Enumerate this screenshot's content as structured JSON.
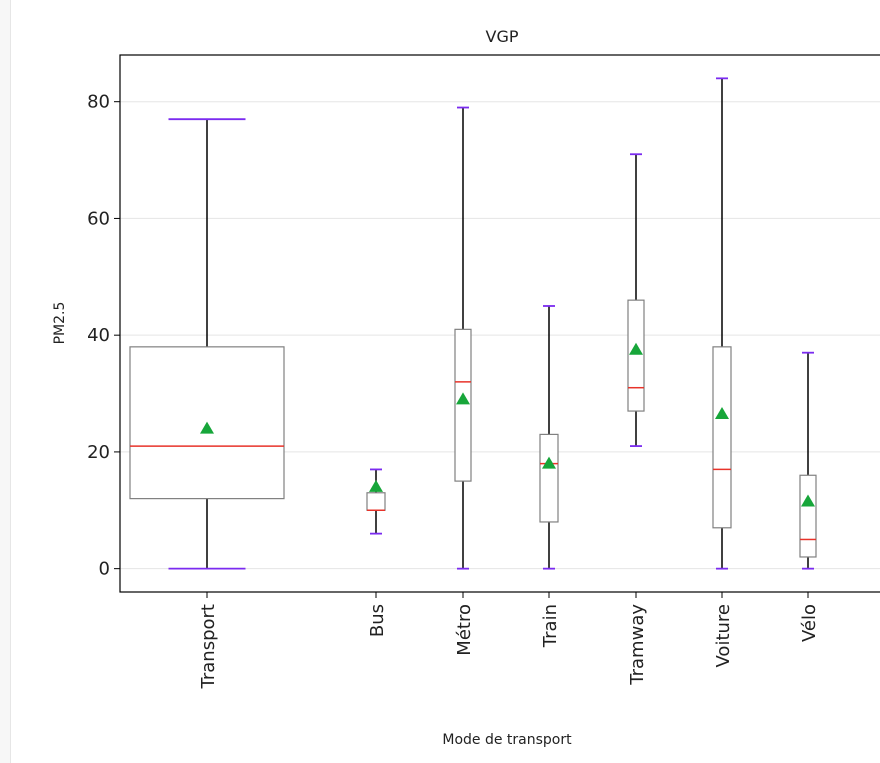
{
  "chart_data": {
    "type": "boxplot",
    "title": "VGP",
    "xlabel": "Mode de transport",
    "ylabel": "PM2.5",
    "ylim": [
      -4,
      88
    ],
    "yticks": [
      0,
      20,
      40,
      60,
      80
    ],
    "grid": "horizontal",
    "colors": {
      "box": "#808080",
      "whisker": "#000000",
      "cap": "#7b2bf0",
      "median": "#e8332a",
      "mean": "#17a63a",
      "grid": "#e5e5e5",
      "axis": "#000000"
    },
    "boxes": [
      {
        "label": "Transport",
        "min": 0,
        "q1": 12,
        "median": 21,
        "q3": 38,
        "max": 77,
        "mean": 24
      },
      {
        "label": "Bus",
        "min": 6,
        "q1": 10,
        "median": 10,
        "q3": 13,
        "max": 17,
        "mean": 14
      },
      {
        "label": "Métro",
        "min": 0,
        "q1": 15,
        "median": 32,
        "q3": 41,
        "max": 79,
        "mean": 29
      },
      {
        "label": "Train",
        "min": 0,
        "q1": 8,
        "median": 18,
        "q3": 23,
        "max": 45,
        "mean": 18
      },
      {
        "label": "Tramway",
        "min": 21,
        "q1": 27,
        "median": 31,
        "q3": 46,
        "max": 71,
        "mean": 37.5
      },
      {
        "label": "Voiture",
        "min": 0,
        "q1": 7,
        "median": 17,
        "q3": 38,
        "max": 84,
        "mean": 26.5
      },
      {
        "label": "Vélo",
        "min": 0,
        "q1": 2,
        "median": 5,
        "q3": 16,
        "max": 37,
        "mean": 11.5
      }
    ]
  }
}
